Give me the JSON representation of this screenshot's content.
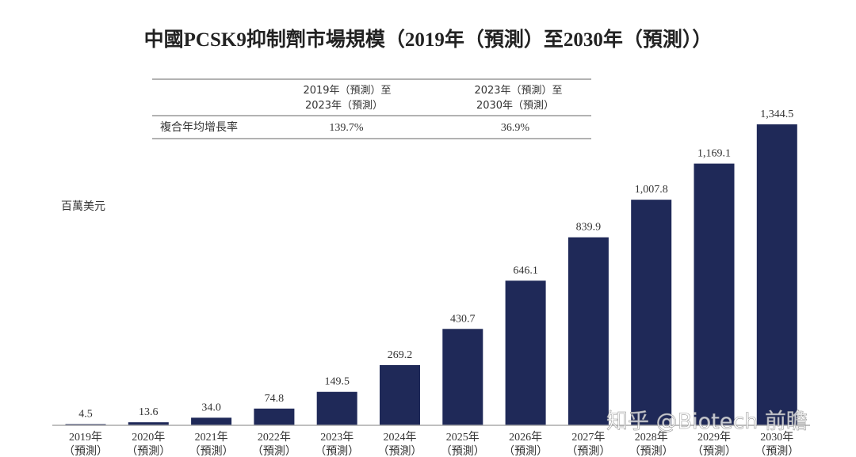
{
  "chart_data": {
    "type": "bar",
    "title": "中國PCSK9抑制劑市場規模（2019年（預測）至2030年（預測））",
    "ylabel": "百萬美元",
    "xlabel": "",
    "categories": [
      [
        "2019年",
        "（預測）"
      ],
      [
        "2020年",
        "（預測）"
      ],
      [
        "2021年",
        "（預測）"
      ],
      [
        "2022年",
        "（預測）"
      ],
      [
        "2023年",
        "（預測）"
      ],
      [
        "2024年",
        "（預測）"
      ],
      [
        "2025年",
        "（預測）"
      ],
      [
        "2026年",
        "（預測）"
      ],
      [
        "2027年",
        "（預測）"
      ],
      [
        "2028年",
        "（預測）"
      ],
      [
        "2029年",
        "（預測）"
      ],
      [
        "2030年",
        "（預測）"
      ]
    ],
    "values": [
      4.5,
      13.6,
      34.0,
      74.8,
      149.5,
      269.2,
      430.7,
      646.1,
      839.9,
      1007.8,
      1169.1,
      1344.5
    ],
    "data_labels": [
      "4.5",
      "13.6",
      "34.0",
      "74.8",
      "149.5",
      "269.2",
      "430.7",
      "646.1",
      "839.9",
      "1,007.8",
      "1,169.1",
      "1,344.5"
    ],
    "ylim": [
      0,
      1344.5
    ],
    "grid": false,
    "bar_color": "#1f2958",
    "cagr_table": {
      "headers": [
        [
          "2019年（預測）至",
          "2023年（預測）"
        ],
        [
          "2023年（預測）至",
          "2030年（預測）"
        ]
      ],
      "row_label": "複合年均增長率",
      "values": [
        "139.7%",
        "36.9%"
      ]
    }
  },
  "watermark": "知乎 @Biotech 前瞻"
}
